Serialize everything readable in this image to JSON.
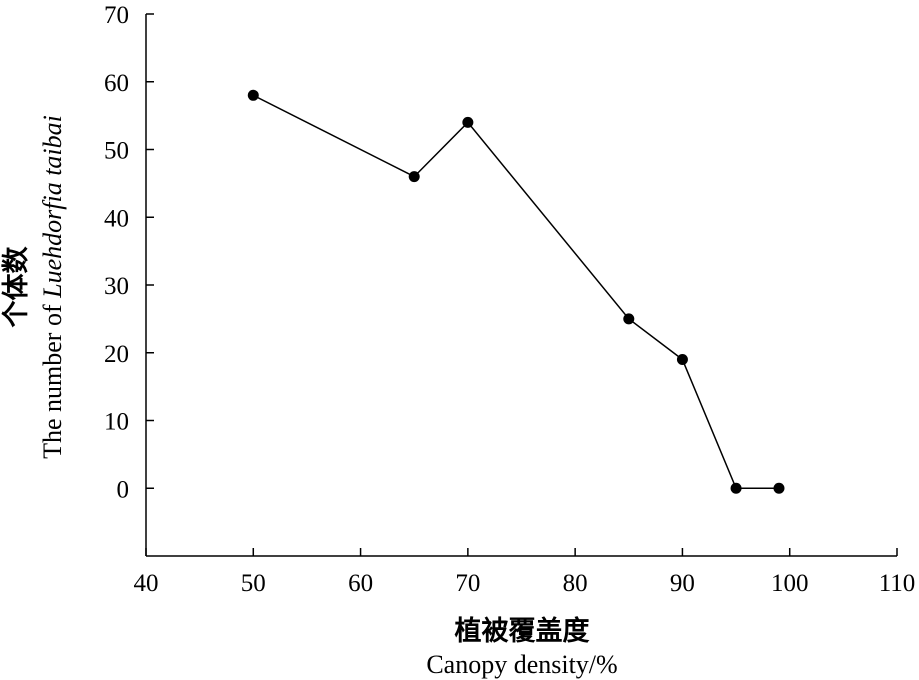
{
  "chart_data": {
    "type": "line",
    "title": "",
    "xlabel_cn": "植被覆盖度",
    "xlabel": "Canopy density/%",
    "ylabel_cn": "个体数",
    "ylabel_prefix": "The number of ",
    "ylabel_species": "Luehdorfia taibai",
    "xlim": [
      40,
      110
    ],
    "ylim": [
      -10,
      70
    ],
    "xticks": [
      40,
      50,
      60,
      70,
      80,
      90,
      100,
      110
    ],
    "yticks": [
      0,
      10,
      20,
      30,
      40,
      50,
      60,
      70
    ],
    "grid": false,
    "legend": "none",
    "series": [
      {
        "x": [
          50,
          65,
          70,
          85,
          90,
          95,
          99
        ],
        "y": [
          58,
          46,
          54,
          25,
          19,
          0,
          0
        ]
      }
    ],
    "line_color": "#000000",
    "marker_color": "#000000"
  }
}
